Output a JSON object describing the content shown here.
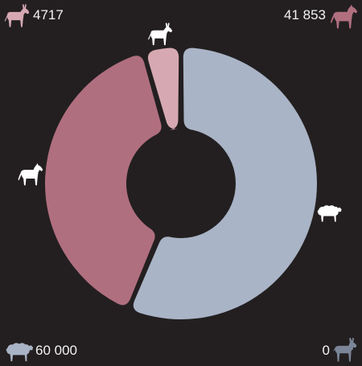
{
  "chart_data": {
    "type": "pie",
    "variant": "donut",
    "series": [
      {
        "name": "sheep",
        "value": 60000,
        "color": "#a9b4c6",
        "icon": "sheep-icon"
      },
      {
        "name": "horse",
        "value": 41853,
        "color": "#b06f7f",
        "icon": "horse-icon"
      },
      {
        "name": "donkey",
        "value": 4717,
        "color": "#d6a9b2",
        "icon": "donkey-icon"
      },
      {
        "name": "goat",
        "value": 0,
        "color": "#7a8597",
        "icon": "goat-icon"
      }
    ],
    "value_labels": {
      "donkey": "4717",
      "horse": "41 853",
      "sheep": "60 000",
      "goat": "0"
    },
    "legend": "corners"
  },
  "colors": {
    "background": "#231f20",
    "label_text": "#f2f2f2",
    "slice_icon": "#ffffff"
  }
}
